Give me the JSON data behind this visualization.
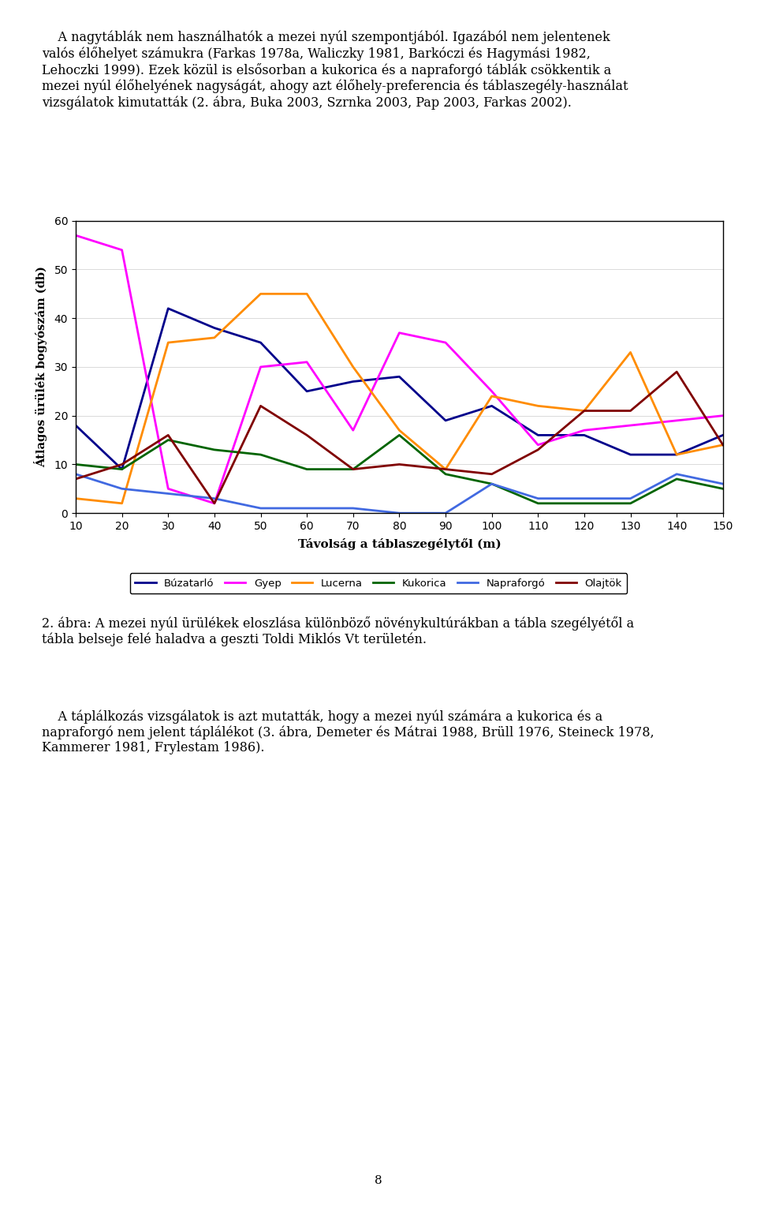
{
  "x": [
    10,
    20,
    30,
    40,
    50,
    60,
    70,
    80,
    90,
    100,
    110,
    120,
    130,
    140,
    150
  ],
  "buzatarlo": [
    18,
    9,
    42,
    38,
    35,
    25,
    27,
    28,
    19,
    22,
    16,
    16,
    12,
    12,
    16
  ],
  "gyep": [
    57,
    54,
    5,
    2,
    30,
    31,
    17,
    37,
    35,
    25,
    14,
    17,
    18,
    19,
    20
  ],
  "lucerna": [
    3,
    2,
    35,
    36,
    45,
    45,
    30,
    17,
    9,
    24,
    22,
    21,
    33,
    12,
    14
  ],
  "kukorica": [
    10,
    9,
    15,
    13,
    12,
    9,
    9,
    16,
    8,
    6,
    2,
    2,
    2,
    7,
    5
  ],
  "naprafargo": [
    8,
    5,
    4,
    3,
    1,
    1,
    1,
    0,
    0,
    6,
    3,
    3,
    3,
    8,
    6
  ],
  "olajток": [
    7,
    10,
    16,
    2,
    22,
    16,
    9,
    10,
    9,
    8,
    13,
    21,
    21,
    29,
    14
  ],
  "colors": {
    "buzatarlo": "#00008B",
    "gyep": "#FF00FF",
    "lucerna": "#FF8C00",
    "kukorica": "#006400",
    "naprafargo": "#4169E1",
    "olajток": "#800000"
  },
  "xlabel": "Távolság a táblaszegélytől (m)",
  "ylabel": "Átlagos ürülék bogyószám (db)",
  "ylim": [
    0,
    60
  ],
  "xlim": [
    10,
    150
  ],
  "xticks": [
    10,
    20,
    30,
    40,
    50,
    60,
    70,
    80,
    90,
    100,
    110,
    120,
    130,
    140,
    150
  ],
  "yticks": [
    0,
    10,
    20,
    30,
    40,
    50,
    60
  ],
  "legend_labels": [
    "Búzatarló",
    "Gyep",
    "Lucerna",
    "Kukorica",
    "Napraforgó",
    "Olajtök"
  ],
  "top_text_line1": "    A nagytáblák nem használhatók a mezei nyúl szempontjából. Igazából nem jelentenek",
  "top_text_line2": "valós élőhelyet számukra (Farkas 1978a, Waliczky 1981, Barkóczi és Hagymási 1982,",
  "top_text_line3": "Lehoczki 1999). Ezek közül is elsősorban a kukorica és a napraforgó táblák csökkentik a",
  "top_text_line4": "mezei nyúl élőhelyének nagyságát, ahogy azt élőhely-preferencia és táblaszegély-használat",
  "top_text_line5": "vizsgálatok kimutatták (2. ábra, Buka 2003, Szrnka 2003, Pap 2003, Farkas 2002).",
  "caption_line1": "2. ábra: A mezei nyúl ürülékek eloszlása különböző növénykultúrákban a tábla szegélyétől a",
  "caption_line2": "tábla belseje felé haladva a geszti Toldi Miklós Vt területén.",
  "bottom_text_line1": "    A táplálkozás vizsgálatok is azt mutatták, hogy a mezei nyúl számára a kukorica és a",
  "bottom_text_line2": "napraforgó nem jelent táplálékot (3. ábra, Demeter és Mátrai 1988, Brüll 1976, Steineck 1978,",
  "bottom_text_line3": "Kammerer 1981, Frylestam 1986).",
  "page_number": "8",
  "figsize": [
    9.6,
    15.37
  ],
  "dpi": 100
}
